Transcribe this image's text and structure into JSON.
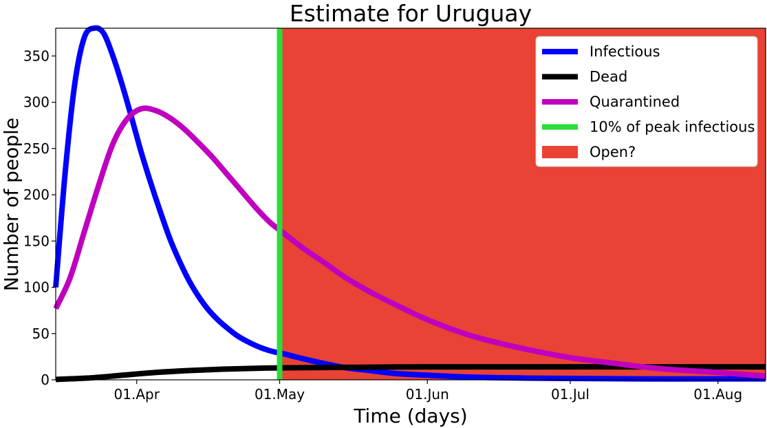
{
  "chart_data": {
    "type": "line",
    "title": "Estimate for Uruguay",
    "xlabel": "Time (days)",
    "ylabel": "Number of people",
    "x_ticks": [
      "01.Apr",
      "01.May",
      "01.Jun",
      "01.Jul",
      "01.Aug"
    ],
    "y_ticks": [
      "0",
      "50",
      "100",
      "150",
      "200",
      "250",
      "300",
      "350"
    ],
    "xlim": [
      "2020-03-15",
      "2020-08-11"
    ],
    "ylim": [
      0,
      380
    ],
    "grid": false,
    "legend_position": "top-right",
    "series": [
      {
        "name": "Infectious",
        "color": "#0000ff",
        "x": [
          "2020-03-15",
          "2020-03-17",
          "2020-03-19",
          "2020-03-21",
          "2020-03-23",
          "2020-03-25",
          "2020-03-27",
          "2020-03-29",
          "2020-03-31",
          "2020-04-02",
          "2020-04-04",
          "2020-04-06",
          "2020-04-08",
          "2020-04-10",
          "2020-04-12",
          "2020-04-14",
          "2020-04-16",
          "2020-04-18",
          "2020-04-20",
          "2020-04-22",
          "2020-04-24",
          "2020-04-26",
          "2020-04-28",
          "2020-04-30",
          "2020-05-02",
          "2020-05-05",
          "2020-05-10",
          "2020-05-15",
          "2020-05-20",
          "2020-05-25",
          "2020-06-01",
          "2020-06-10",
          "2020-06-20",
          "2020-07-01",
          "2020-07-15",
          "2020-08-01",
          "2020-08-11"
        ],
        "y": [
          100,
          225,
          320,
          370,
          380,
          375,
          350,
          318,
          282,
          245,
          212,
          181,
          152,
          128,
          107,
          90,
          76,
          65,
          56,
          48,
          42,
          37,
          33,
          30,
          28,
          24,
          18,
          13,
          10,
          7,
          5,
          3,
          2,
          1.5,
          1,
          1,
          1
        ]
      },
      {
        "name": "Dead",
        "color": "#000000",
        "x": [
          "2020-03-15",
          "2020-03-22",
          "2020-03-29",
          "2020-04-05",
          "2020-04-12",
          "2020-04-19",
          "2020-04-26",
          "2020-05-03",
          "2020-05-15",
          "2020-06-01",
          "2020-06-15",
          "2020-07-01",
          "2020-07-15",
          "2020-08-01",
          "2020-08-11"
        ],
        "y": [
          0.5,
          2,
          5,
          8,
          10,
          11.5,
          12.5,
          13,
          13.5,
          14,
          14,
          14,
          14,
          14,
          14
        ]
      },
      {
        "name": "Quarantined",
        "color": "#bf00bf",
        "x": [
          "2020-03-15",
          "2020-03-18",
          "2020-03-21",
          "2020-03-24",
          "2020-03-27",
          "2020-03-30",
          "2020-04-02",
          "2020-04-05",
          "2020-04-08",
          "2020-04-11",
          "2020-04-14",
          "2020-04-17",
          "2020-04-20",
          "2020-04-23",
          "2020-04-26",
          "2020-04-29",
          "2020-05-02",
          "2020-05-06",
          "2020-05-10",
          "2020-05-15",
          "2020-05-20",
          "2020-05-25",
          "2020-06-01",
          "2020-06-10",
          "2020-06-20",
          "2020-07-01",
          "2020-07-10",
          "2020-07-20",
          "2020-08-01",
          "2020-08-11"
        ],
        "y": [
          77,
          110,
          160,
          210,
          255,
          282,
          293,
          291,
          283,
          271,
          256,
          240,
          222,
          204,
          186,
          170,
          158,
          142,
          128,
          110,
          95,
          82,
          65,
          48,
          35,
          24,
          18,
          12,
          8,
          4
        ]
      },
      {
        "name": "10% of peak infectious",
        "color": "#29dd3a",
        "x": [
          "2020-05-01",
          "2020-05-01"
        ],
        "y": [
          0,
          380
        ]
      }
    ],
    "shaded_region": {
      "name": "Open?",
      "color": "#e84335",
      "x_start": "2020-05-01",
      "x_end": "2020-08-11"
    }
  }
}
